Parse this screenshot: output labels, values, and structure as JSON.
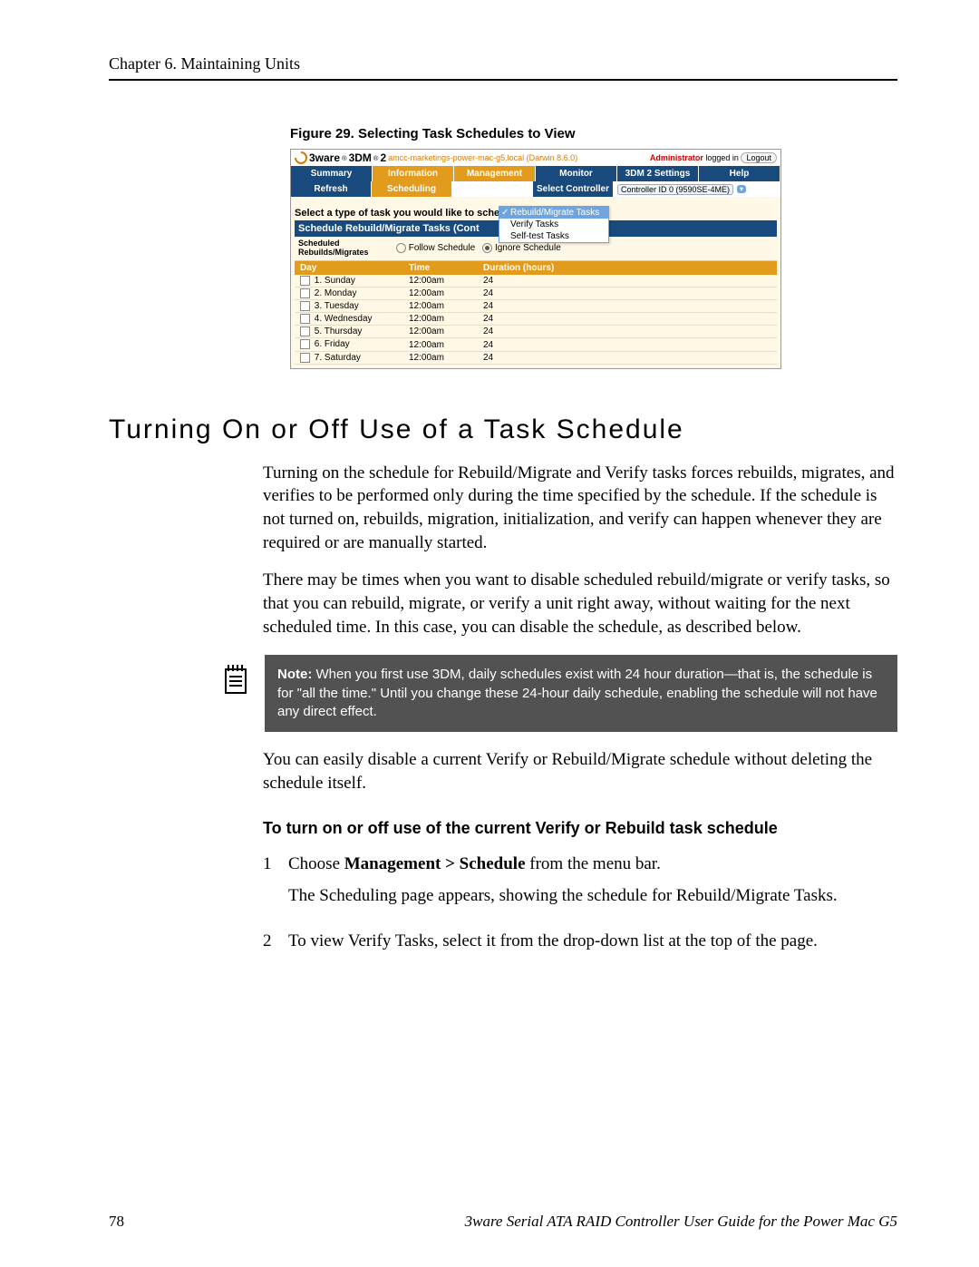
{
  "chapter_header": "Chapter 6. Maintaining Units",
  "figure": {
    "caption": "Figure 29.  Selecting Task Schedules to View",
    "logo1": "3ware",
    "logo2": "3DM",
    "logo_sup": "®",
    "logo_ver": "2",
    "host": "amcc-marketings-power-mac-g5.local (Darwin 8.6.0)",
    "admin_word": "Administrator",
    "logged_in": " logged in",
    "logout": "Logout",
    "nav": {
      "summary": "Summary",
      "information": "Information",
      "management": "Management",
      "monitor": "Monitor",
      "settings": "3DM 2 Settings",
      "help": "Help"
    },
    "nav2": {
      "refresh": "Refresh",
      "scheduling": "Scheduling",
      "select_controller": "Select Controller",
      "controller_id": "Controller ID 0 (9590SE-4ME)"
    },
    "select_label": "Select a type of task you would like to schedule",
    "dropdown": {
      "opt1": "Rebuild/Migrate Tasks",
      "opt2": "Verify Tasks",
      "opt3": "Self-test Tasks"
    },
    "blue_bar": "Schedule Rebuild/Migrate Tasks (Cont",
    "sched_meta_label": "Scheduled Rebuilds/Migrates",
    "sched_follow": "Follow Schedule",
    "sched_ignore": "Ignore Schedule",
    "cols": {
      "day": "Day",
      "time": "Time",
      "duration": "Duration (hours)"
    },
    "rows": [
      {
        "n": "1.",
        "day": "Sunday",
        "time": "12:00am",
        "dur": "24"
      },
      {
        "n": "2.",
        "day": "Monday",
        "time": "12:00am",
        "dur": "24"
      },
      {
        "n": "3.",
        "day": "Tuesday",
        "time": "12:00am",
        "dur": "24"
      },
      {
        "n": "4.",
        "day": "Wednesday",
        "time": "12:00am",
        "dur": "24"
      },
      {
        "n": "5.",
        "day": "Thursday",
        "time": "12:00am",
        "dur": "24"
      },
      {
        "n": "6.",
        "day": "Friday",
        "time": "12:00am",
        "dur": "24"
      },
      {
        "n": "7.",
        "day": "Saturday",
        "time": "12:00am",
        "dur": "24"
      }
    ]
  },
  "section_title": "Turning On or Off Use of a Task Schedule",
  "para1": "Turning on the schedule for Rebuild/Migrate and Verify tasks forces rebuilds, migrates, and verifies to be performed only during the time specified by the schedule. If the schedule is not turned on, rebuilds, migration, initialization, and verify can happen whenever they are required or are manually started.",
  "para2": "There may be times when you want to disable scheduled rebuild/migrate or verify tasks, so that you can rebuild, migrate, or verify a unit right away, without waiting for the next scheduled time. In this case, you can disable the schedule, as described below.",
  "note_label": "Note:",
  "note_body": " When you first use 3DM, daily schedules exist with 24 hour duration—that is, the schedule is for \"all the time.\" Until you change these 24-hour daily schedule, enabling the schedule will not have any direct effect.",
  "para3": "You can easily disable a current Verify or Rebuild/Migrate schedule without deleting the schedule itself.",
  "steps_heading": "To turn on or off use of the current Verify or Rebuild task schedule",
  "step1_num": "1",
  "step1_a_pre": "Choose ",
  "step1_a_bold": "Management > Schedule",
  "step1_a_post": " from the menu bar.",
  "step1_b": "The Scheduling page appears, showing the schedule for Rebuild/Migrate Tasks.",
  "step2_num": "2",
  "step2": "To view Verify Tasks, select it from the drop-down list at the top of the page.",
  "footer_page": "78",
  "footer_title": "3ware Serial ATA RAID Controller User Guide for the Power Mac G5",
  "colors": {
    "nav_blue": "#184a7d",
    "nav_orange": "#e39b1d",
    "note_bg": "#525252",
    "figure_bg": "#fff8e6"
  }
}
